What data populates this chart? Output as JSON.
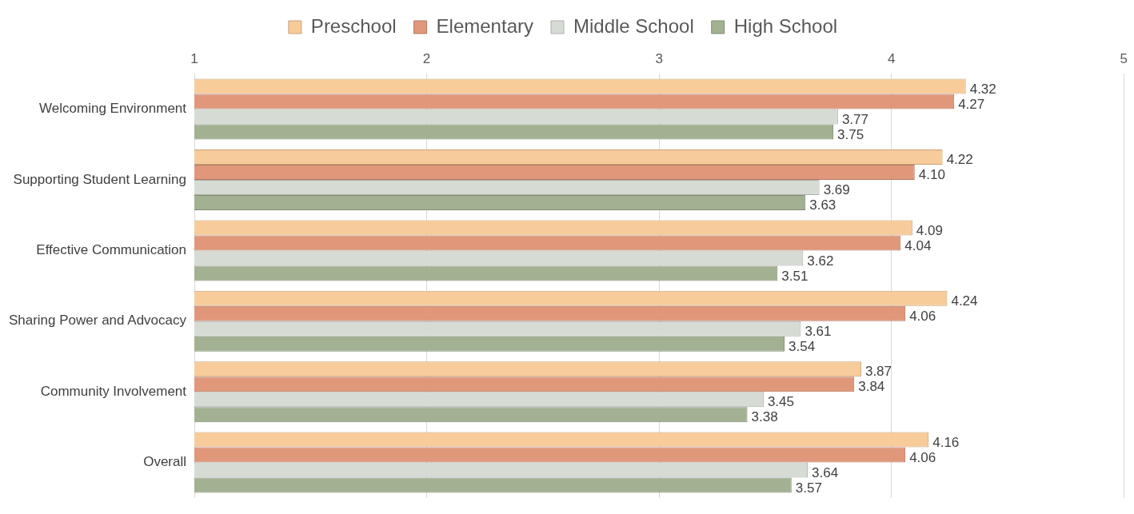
{
  "chart_data": {
    "type": "bar",
    "orientation": "horizontal",
    "categories": [
      "Welcoming Environment",
      "Supporting Student Learning",
      "Effective Communication",
      "Sharing Power and Advocacy",
      "Community Involvement",
      "Overall"
    ],
    "series": [
      {
        "name": "Preschool",
        "color": "#f8cb9a",
        "values": [
          4.32,
          4.22,
          4.09,
          4.24,
          3.87,
          4.16
        ],
        "value_labels": [
          "4.32",
          "4.22",
          "4.09",
          "4.24",
          "3.87",
          "4.16"
        ]
      },
      {
        "name": "Elementary",
        "color": "#e0977a",
        "values": [
          4.27,
          4.1,
          4.04,
          4.06,
          3.84,
          4.06
        ],
        "value_labels": [
          "4.27",
          "4.10",
          "4.04",
          "4.06",
          "3.84",
          "4.06"
        ]
      },
      {
        "name": "Middle School",
        "color": "#d6dcd4",
        "values": [
          3.77,
          3.69,
          3.62,
          3.61,
          3.45,
          3.64
        ],
        "value_labels": [
          "3.77",
          "3.69",
          "3.62",
          "3.61",
          "3.45",
          "3.64"
        ]
      },
      {
        "name": "High School",
        "color": "#a2b192",
        "values": [
          3.75,
          3.63,
          3.51,
          3.54,
          3.38,
          3.57
        ],
        "value_labels": [
          "3.75",
          "3.63",
          "3.51",
          "3.54",
          "3.38",
          "3.57"
        ]
      }
    ],
    "xlim": [
      1,
      5
    ],
    "xticks": [
      1,
      2,
      3,
      4,
      5
    ],
    "grid": "x",
    "legend": "top"
  }
}
